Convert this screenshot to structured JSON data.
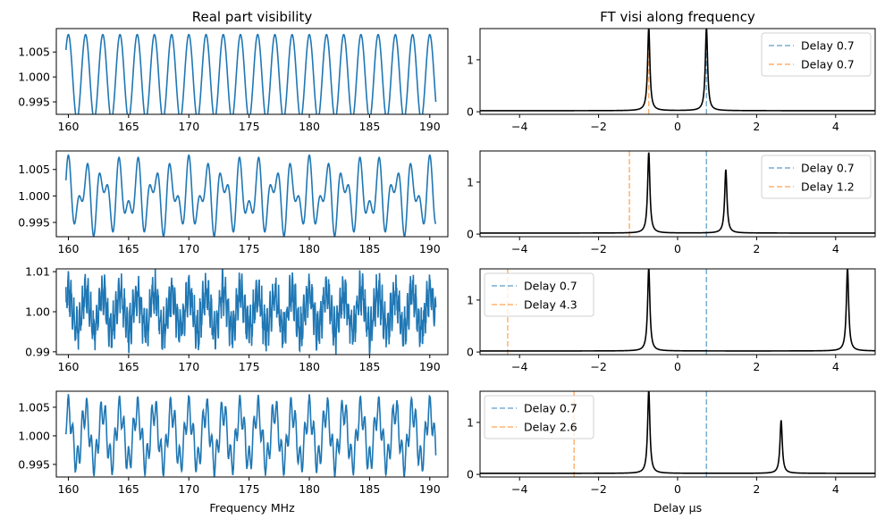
{
  "colors": {
    "signal": "#1f77b4",
    "ft_line": "#000000",
    "delay_a": "#1f77b4",
    "delay_b": "#ff7f0e"
  },
  "chart_data": [
    {
      "type": "line",
      "title": "Real part visibility",
      "xlabel": "",
      "xlim": [
        159,
        191.5
      ],
      "ylim": [
        0.9925,
        1.0097
      ],
      "xticks": [
        "160",
        "165",
        "170",
        "175",
        "180",
        "185",
        "190"
      ],
      "yticks": [
        "0.995",
        "1.000",
        "1.005"
      ],
      "signal": {
        "delays_us": [
          0.7
        ],
        "amplitudes": [
          0.0085
        ],
        "noise": 0,
        "baseline": 1.0,
        "x_start": 159.8,
        "x_end": 190.5
      }
    },
    {
      "type": "line",
      "title": "",
      "xlabel": "",
      "xlim": [
        159,
        191.5
      ],
      "ylim": [
        0.9923,
        1.0085
      ],
      "xticks": [
        "160",
        "165",
        "170",
        "175",
        "180",
        "185",
        "190"
      ],
      "yticks": [
        "0.995",
        "1.000",
        "1.005"
      ],
      "signal": {
        "delays_us": [
          0.7,
          1.2
        ],
        "amplitudes": [
          0.0043,
          0.0034
        ],
        "noise": 0,
        "baseline": 1.0,
        "x_start": 159.8,
        "x_end": 190.5
      }
    },
    {
      "type": "line",
      "title": "",
      "xlabel": "",
      "xlim": [
        159,
        191.5
      ],
      "ylim": [
        0.9893,
        1.0107
      ],
      "xticks": [
        "160",
        "165",
        "170",
        "175",
        "180",
        "185",
        "190"
      ],
      "yticks": [
        "0.99",
        "1.00",
        "1.01"
      ],
      "signal": {
        "delays_us": [
          0.7,
          4.3
        ],
        "amplitudes": [
          0.0045,
          0.004
        ],
        "noise": 0.0025,
        "baseline": 1.0,
        "x_start": 159.8,
        "x_end": 190.5
      }
    },
    {
      "type": "line",
      "title": "",
      "xlabel": "Frequency MHz",
      "xlim": [
        159,
        191.5
      ],
      "ylim": [
        0.9928,
        1.0078
      ],
      "xticks": [
        "160",
        "165",
        "170",
        "175",
        "180",
        "185",
        "190"
      ],
      "yticks": [
        "0.995",
        "1.000",
        "1.005"
      ],
      "signal": {
        "delays_us": [
          0.7,
          2.6
        ],
        "amplitudes": [
          0.0045,
          0.0025
        ],
        "noise": 0.0003,
        "baseline": 1.0,
        "x_start": 159.8,
        "x_end": 190.5
      }
    },
    {
      "type": "line",
      "title": "FT visi along frequency",
      "xlabel": "",
      "xlim": [
        -5,
        5
      ],
      "ylim": [
        -0.05,
        1.6
      ],
      "xticks": [
        "−4",
        "−2",
        "0",
        "2",
        "4"
      ],
      "yticks": [
        "0",
        "1"
      ],
      "peaks": [
        {
          "x": -0.73,
          "height": 1.6
        },
        {
          "x": 0.73,
          "height": 1.6
        }
      ],
      "delay_lines": [
        {
          "label": "Delay 0.7",
          "x": 0.73,
          "color_key": "delay_a"
        },
        {
          "label": "Delay 0.7",
          "x": -0.73,
          "color_key": "delay_b"
        }
      ],
      "legend": "top-right"
    },
    {
      "type": "line",
      "title": "",
      "xlabel": "",
      "xlim": [
        -5,
        5
      ],
      "ylim": [
        -0.05,
        1.6
      ],
      "xticks": [
        "−4",
        "−2",
        "0",
        "2",
        "4"
      ],
      "yticks": [
        "0",
        "1"
      ],
      "peaks": [
        {
          "x": -0.73,
          "height": 1.55
        },
        {
          "x": 1.22,
          "height": 1.22
        }
      ],
      "delay_lines": [
        {
          "label": "Delay 0.7",
          "x": 0.73,
          "color_key": "delay_a"
        },
        {
          "label": "Delay 1.2",
          "x": -1.22,
          "color_key": "delay_b"
        }
      ],
      "legend": "top-right"
    },
    {
      "type": "line",
      "title": "",
      "xlabel": "",
      "xlim": [
        -5,
        5
      ],
      "ylim": [
        -0.05,
        1.6
      ],
      "xticks": [
        "−4",
        "−2",
        "0",
        "2",
        "4"
      ],
      "yticks": [
        "0",
        "1"
      ],
      "peaks": [
        {
          "x": -0.73,
          "height": 1.6
        },
        {
          "x": 4.3,
          "height": 1.6
        }
      ],
      "delay_lines": [
        {
          "label": "Delay 0.7",
          "x": 0.73,
          "color_key": "delay_a"
        },
        {
          "label": "Delay 4.3",
          "x": -4.3,
          "color_key": "delay_b"
        }
      ],
      "legend": "top-left"
    },
    {
      "type": "line",
      "title": "",
      "xlabel": "Delay μs",
      "xlim": [
        -5,
        5
      ],
      "ylim": [
        -0.05,
        1.6
      ],
      "xticks": [
        "−4",
        "−2",
        "0",
        "2",
        "4"
      ],
      "yticks": [
        "0",
        "1"
      ],
      "peaks": [
        {
          "x": -0.73,
          "height": 1.6
        },
        {
          "x": 2.62,
          "height": 1.02
        }
      ],
      "delay_lines": [
        {
          "label": "Delay 0.7",
          "x": 0.73,
          "color_key": "delay_a"
        },
        {
          "label": "Delay 2.6",
          "x": -2.62,
          "color_key": "delay_b"
        }
      ],
      "legend": "top-left"
    }
  ]
}
